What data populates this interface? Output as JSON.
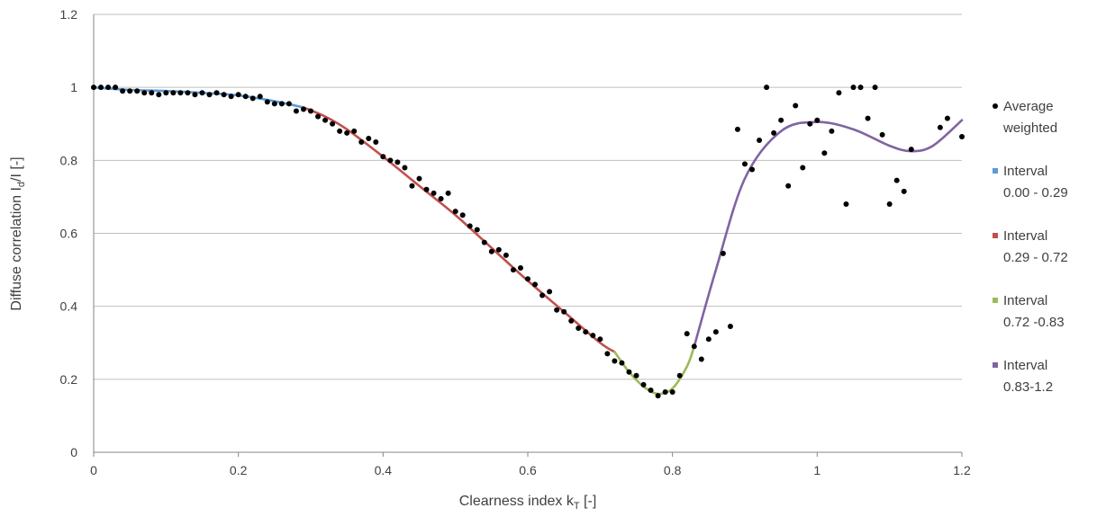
{
  "chart_data": {
    "type": "scatter",
    "xlabel": {
      "base": "Clearness index k",
      "sub": "T",
      "tail": " [-]"
    },
    "ylabel": {
      "base": "Diffuse correlation I",
      "sub": "d",
      "tail": "/I [-]"
    },
    "xlim": [
      0,
      1.2
    ],
    "ylim": [
      0,
      1.2
    ],
    "xticks": [
      "0",
      "0.2",
      "0.4",
      "0.6",
      "0.8",
      "1",
      "1.2"
    ],
    "yticks": [
      "0",
      "0.2",
      "0.4",
      "0.6",
      "0.8",
      "1",
      "1.2"
    ],
    "grid": "horizontal",
    "legend_position": "right",
    "series": [
      {
        "name": "Average weighted",
        "kind": "points",
        "color": "#000000",
        "x": [
          0.0,
          0.01,
          0.02,
          0.03,
          0.04,
          0.05,
          0.06,
          0.07,
          0.08,
          0.09,
          0.1,
          0.11,
          0.12,
          0.13,
          0.14,
          0.15,
          0.16,
          0.17,
          0.18,
          0.19,
          0.2,
          0.21,
          0.22,
          0.23,
          0.24,
          0.25,
          0.26,
          0.27,
          0.28,
          0.29,
          0.3,
          0.31,
          0.32,
          0.33,
          0.34,
          0.35,
          0.36,
          0.37,
          0.38,
          0.39,
          0.4,
          0.41,
          0.42,
          0.43,
          0.44,
          0.45,
          0.46,
          0.47,
          0.48,
          0.49,
          0.5,
          0.51,
          0.52,
          0.53,
          0.54,
          0.55,
          0.56,
          0.57,
          0.58,
          0.59,
          0.6,
          0.61,
          0.62,
          0.63,
          0.64,
          0.65,
          0.66,
          0.67,
          0.68,
          0.69,
          0.7,
          0.71,
          0.72,
          0.73,
          0.74,
          0.75,
          0.76,
          0.77,
          0.78,
          0.79,
          0.8,
          0.81,
          0.82,
          0.83,
          0.84,
          0.85,
          0.86,
          0.87,
          0.88,
          0.89,
          0.9,
          0.91,
          0.92,
          0.93,
          0.94,
          0.95,
          0.96,
          0.97,
          0.98,
          0.99,
          1.0,
          1.01,
          1.02,
          1.03,
          1.04,
          1.05,
          1.06,
          1.07,
          1.08,
          1.09,
          1.1,
          1.11,
          1.12,
          1.13,
          1.17,
          1.18,
          1.2
        ],
        "y": [
          1.0,
          1.0,
          1.0,
          1.0,
          0.99,
          0.99,
          0.99,
          0.985,
          0.985,
          0.98,
          0.985,
          0.985,
          0.985,
          0.985,
          0.98,
          0.985,
          0.98,
          0.985,
          0.98,
          0.975,
          0.98,
          0.975,
          0.97,
          0.975,
          0.96,
          0.955,
          0.955,
          0.955,
          0.935,
          0.94,
          0.935,
          0.92,
          0.91,
          0.9,
          0.88,
          0.875,
          0.88,
          0.85,
          0.86,
          0.85,
          0.81,
          0.8,
          0.795,
          0.78,
          0.73,
          0.75,
          0.72,
          0.71,
          0.695,
          0.71,
          0.66,
          0.65,
          0.62,
          0.61,
          0.575,
          0.55,
          0.555,
          0.54,
          0.5,
          0.505,
          0.475,
          0.46,
          0.43,
          0.44,
          0.39,
          0.385,
          0.36,
          0.34,
          0.33,
          0.32,
          0.31,
          0.27,
          0.25,
          0.245,
          0.22,
          0.21,
          0.185,
          0.17,
          0.155,
          0.165,
          0.165,
          0.21,
          0.325,
          0.29,
          0.255,
          0.31,
          0.33,
          0.545,
          0.345,
          0.885,
          0.79,
          0.775,
          0.855,
          1.0,
          0.875,
          0.91,
          0.73,
          0.95,
          0.78,
          0.9,
          0.91,
          0.82,
          0.88,
          0.985,
          0.68,
          1.0,
          1.0,
          0.915,
          1.0,
          0.87,
          0.68,
          0.745,
          0.715,
          0.83,
          0.89,
          0.915,
          0.865
        ]
      },
      {
        "name": "Interval 0.00 - 0.29",
        "kind": "line",
        "color": "#5b9bd5",
        "x": [
          0.0,
          0.05,
          0.1,
          0.15,
          0.2,
          0.25,
          0.29
        ],
        "y": [
          1.0,
          0.993,
          0.99,
          0.985,
          0.978,
          0.962,
          0.945
        ]
      },
      {
        "name": "Interval 0.29 - 0.72",
        "kind": "line",
        "color": "#c0504d",
        "x": [
          0.29,
          0.32,
          0.35,
          0.4,
          0.45,
          0.5,
          0.55,
          0.6,
          0.65,
          0.7,
          0.72
        ],
        "y": [
          0.945,
          0.92,
          0.885,
          0.81,
          0.73,
          0.65,
          0.56,
          0.47,
          0.385,
          0.3,
          0.275
        ]
      },
      {
        "name": "Interval 0.72 -0.83",
        "kind": "line",
        "color": "#9bbb59",
        "x": [
          0.72,
          0.74,
          0.76,
          0.78,
          0.8,
          0.82,
          0.83
        ],
        "y": [
          0.275,
          0.22,
          0.18,
          0.16,
          0.175,
          0.235,
          0.29
        ]
      },
      {
        "name": "Interval 0.83-1.2",
        "kind": "line",
        "color": "#8064a2",
        "x": [
          0.83,
          0.86,
          0.9,
          0.95,
          1.0,
          1.05,
          1.1,
          1.13,
          1.16,
          1.2
        ],
        "y": [
          0.29,
          0.5,
          0.75,
          0.88,
          0.905,
          0.885,
          0.84,
          0.825,
          0.84,
          0.91
        ]
      }
    ],
    "legend": [
      {
        "lines": [
          "Average",
          "weighted"
        ],
        "color": "#000000",
        "marker": "dot"
      },
      {
        "lines": [
          "Interval",
          "0.00 - 0.29"
        ],
        "color": "#5b9bd5",
        "marker": "square"
      },
      {
        "lines": [
          "Interval",
          "0.29 - 0.72"
        ],
        "color": "#c0504d",
        "marker": "square"
      },
      {
        "lines": [
          "Interval",
          "0.72 -0.83"
        ],
        "color": "#9bbb59",
        "marker": "square"
      },
      {
        "lines": [
          "Interval",
          "0.83-1.2"
        ],
        "color": "#8064a2",
        "marker": "square"
      }
    ]
  }
}
